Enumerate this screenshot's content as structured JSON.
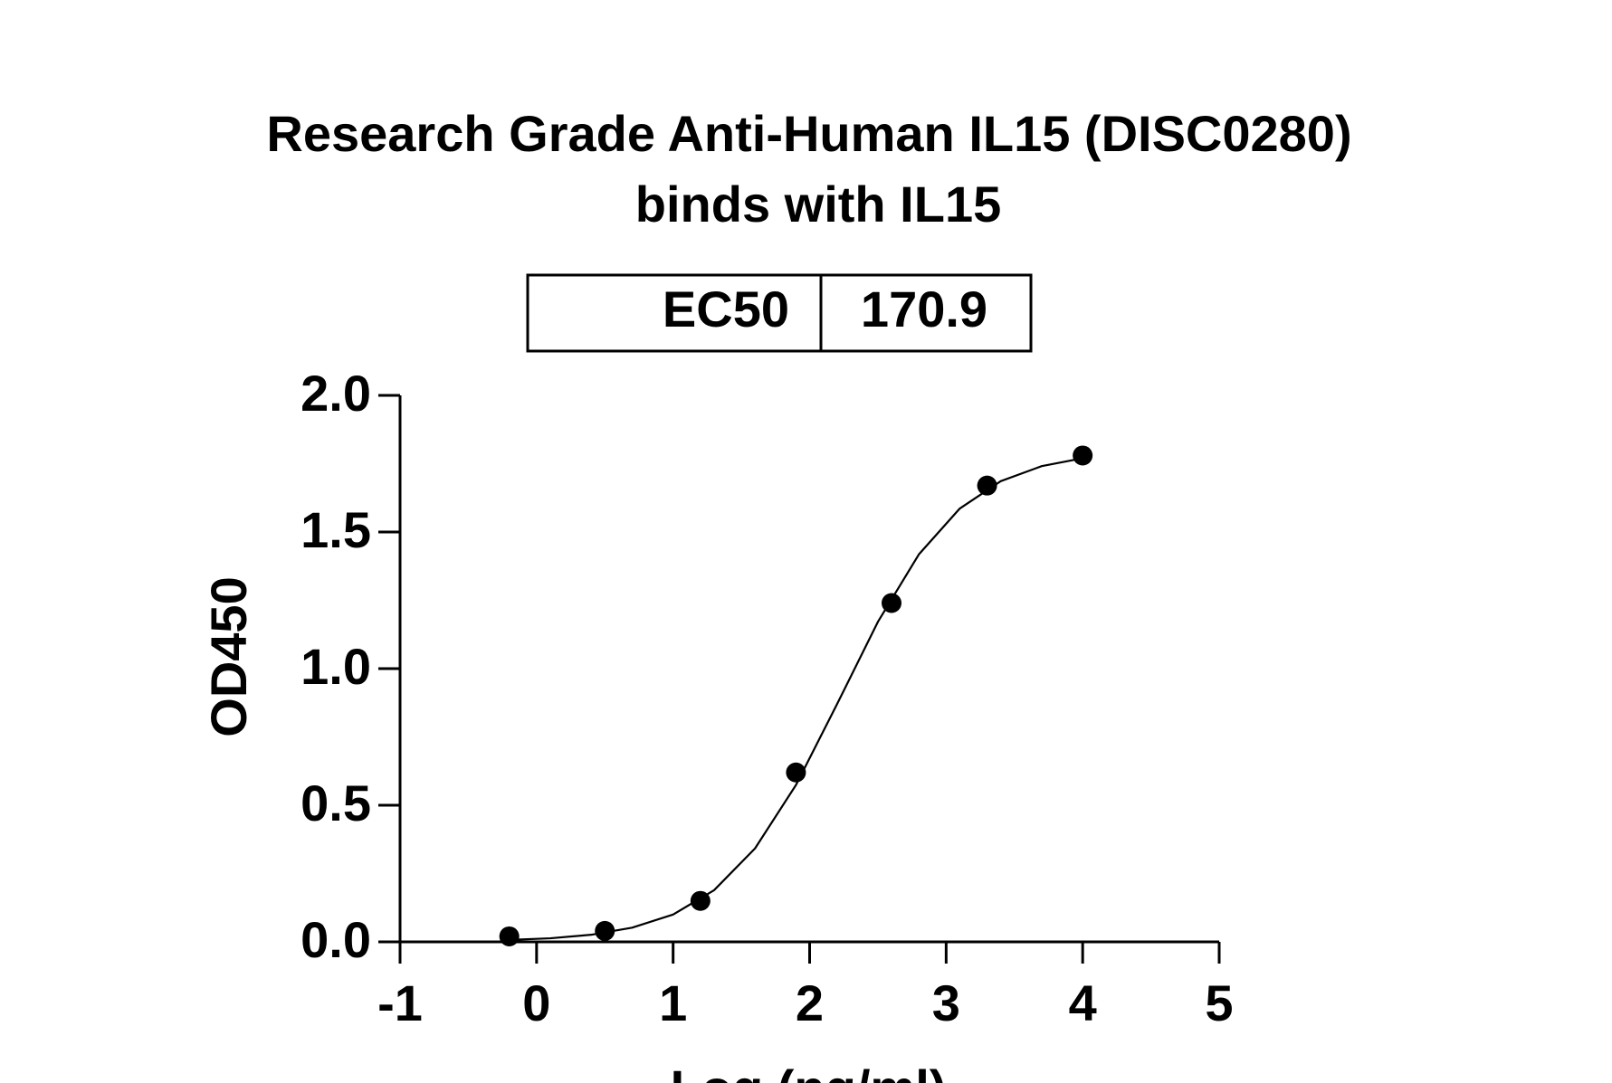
{
  "chart_data": {
    "type": "scatter",
    "title": "Research Grade Anti-Human IL15 (DISC0280)",
    "subtitle": "binds with IL15",
    "table": {
      "label": "EC50",
      "value": 170.9
    },
    "x_label": "Log (ng/ml)",
    "y_label": "OD450",
    "x": [
      -0.2,
      0.5,
      1.2,
      1.9,
      2.6,
      3.3,
      4.0
    ],
    "values": [
      0.02,
      0.04,
      0.15,
      0.62,
      1.24,
      1.67,
      1.78
    ],
    "color": "#000000",
    "fit": {
      "x": [
        -0.2,
        0.1,
        0.4,
        0.7,
        1.0,
        1.3,
        1.6,
        1.9,
        2.2,
        2.5,
        2.8,
        3.1,
        3.4,
        3.7,
        4.0
      ],
      "values": [
        0.007,
        0.013,
        0.026,
        0.052,
        0.1,
        0.189,
        0.342,
        0.574,
        0.869,
        1.171,
        1.418,
        1.586,
        1.686,
        1.741,
        1.77
      ]
    },
    "xlim": [
      -1,
      5
    ],
    "xticks": [
      -1,
      0,
      1,
      2,
      3,
      4,
      5
    ],
    "ylim": [
      0,
      2
    ],
    "yticks": [
      {
        "value": 0,
        "label": "0.0"
      },
      0.5,
      {
        "value": 1,
        "label": "1.0"
      },
      1.5,
      {
        "value": 2,
        "label": "2.0"
      }
    ],
    "grid": false
  }
}
